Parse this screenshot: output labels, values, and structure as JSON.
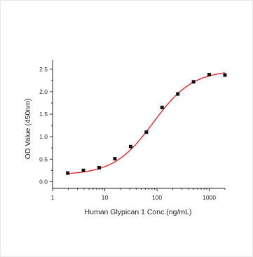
{
  "chart_data": {
    "type": "scatter",
    "title": "",
    "xlabel": "Human Glypican 1 Conc.(ng/mL)",
    "ylabel": "OD Value (450nm)",
    "xscale": "log",
    "xlim": [
      1,
      2000
    ],
    "ylim": [
      -0.15,
      2.7
    ],
    "x_ticks": [
      1,
      10,
      100,
      1000
    ],
    "x_tick_labels": [
      "1",
      "10",
      "100",
      "1000"
    ],
    "y_ticks": [
      0.0,
      0.5,
      1.0,
      1.5,
      2.0,
      2.5
    ],
    "y_tick_labels": [
      "0.0",
      "0.5",
      "1.0",
      "1.5",
      "2.0",
      "2.5"
    ],
    "grid": false,
    "legend": "none",
    "series": [
      {
        "marker": "square",
        "x": [
          1.95,
          3.9,
          7.8,
          15.6,
          31.25,
          62.5,
          125,
          250,
          500,
          1000,
          2000
        ],
        "y": [
          0.19,
          0.25,
          0.31,
          0.51,
          0.78,
          1.1,
          1.65,
          1.95,
          2.22,
          2.38,
          2.37
        ],
        "fit": "4-parameter logistic",
        "fit_color": "#e8262a",
        "marker_color": "#111111"
      }
    ]
  }
}
